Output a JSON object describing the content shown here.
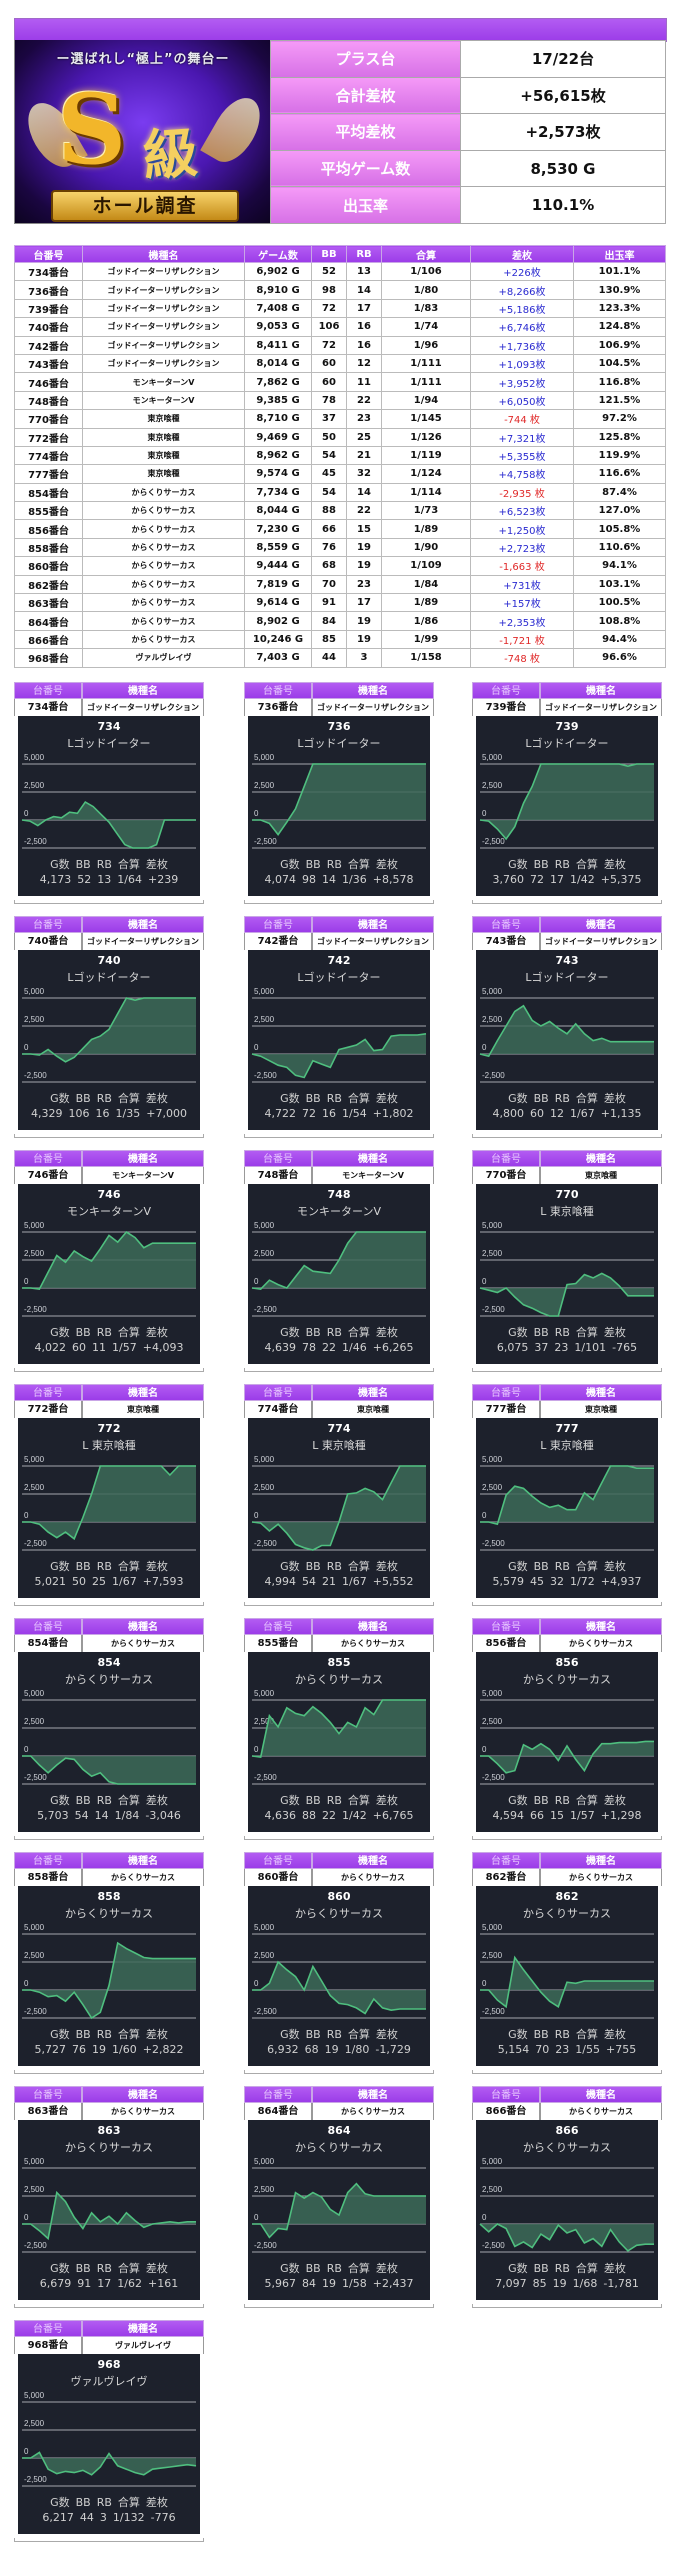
{
  "banner": {
    "tagline": "ー選ばれし“極上”の舞台ー",
    "logo_s": "S",
    "logo_kyu": "級",
    "ribbon": "ホール調査"
  },
  "summary": [
    {
      "label": "プラス台",
      "value": "17/22台"
    },
    {
      "label": "合計差枚",
      "value": "+56,615枚"
    },
    {
      "label": "平均差枚",
      "value": "+2,573枚"
    },
    {
      "label": "平均ゲーム数",
      "value": "8,530 G"
    },
    {
      "label": "出玉率",
      "value": "110.1%"
    }
  ],
  "table": {
    "headers": [
      "台番号",
      "機種名",
      "ゲーム数",
      "BB",
      "RB",
      "合算",
      "差枚",
      "出玉率"
    ],
    "rows": [
      [
        "734番台",
        "ゴッドイーターリザレクション",
        "6,902 G",
        "52",
        "13",
        "1/106",
        "+226枚",
        "101.1%"
      ],
      [
        "736番台",
        "ゴッドイーターリザレクション",
        "8,910 G",
        "98",
        "14",
        "1/80",
        "+8,266枚",
        "130.9%"
      ],
      [
        "739番台",
        "ゴッドイーターリザレクション",
        "7,408 G",
        "72",
        "17",
        "1/83",
        "+5,186枚",
        "123.3%"
      ],
      [
        "740番台",
        "ゴッドイーターリザレクション",
        "9,053 G",
        "106",
        "16",
        "1/74",
        "+6,746枚",
        "124.8%"
      ],
      [
        "742番台",
        "ゴッドイーターリザレクション",
        "8,411 G",
        "72",
        "16",
        "1/96",
        "+1,736枚",
        "106.9%"
      ],
      [
        "743番台",
        "ゴッドイーターリザレクション",
        "8,014 G",
        "60",
        "12",
        "1/111",
        "+1,093枚",
        "104.5%"
      ],
      [
        "746番台",
        "モンキーターンV",
        "7,862 G",
        "60",
        "11",
        "1/111",
        "+3,952枚",
        "116.8%"
      ],
      [
        "748番台",
        "モンキーターンV",
        "9,385 G",
        "78",
        "22",
        "1/94",
        "+6,050枚",
        "121.5%"
      ],
      [
        "770番台",
        "東京喰種",
        "8,710 G",
        "37",
        "23",
        "1/145",
        "-744 枚",
        "97.2%"
      ],
      [
        "772番台",
        "東京喰種",
        "9,469 G",
        "50",
        "25",
        "1/126",
        "+7,321枚",
        "125.8%"
      ],
      [
        "774番台",
        "東京喰種",
        "8,962 G",
        "54",
        "21",
        "1/119",
        "+5,355枚",
        "119.9%"
      ],
      [
        "777番台",
        "東京喰種",
        "9,574 G",
        "45",
        "32",
        "1/124",
        "+4,758枚",
        "116.6%"
      ],
      [
        "854番台",
        "からくりサーカス",
        "7,734 G",
        "54",
        "14",
        "1/114",
        "-2,935 枚",
        "87.4%"
      ],
      [
        "855番台",
        "からくりサーカス",
        "8,044 G",
        "88",
        "22",
        "1/73",
        "+6,523枚",
        "127.0%"
      ],
      [
        "856番台",
        "からくりサーカス",
        "7,230 G",
        "66",
        "15",
        "1/89",
        "+1,250枚",
        "105.8%"
      ],
      [
        "858番台",
        "からくりサーカス",
        "8,559 G",
        "76",
        "19",
        "1/90",
        "+2,723枚",
        "110.6%"
      ],
      [
        "860番台",
        "からくりサーカス",
        "9,444 G",
        "68",
        "19",
        "1/109",
        "-1,663 枚",
        "94.1%"
      ],
      [
        "862番台",
        "からくりサーカス",
        "7,819 G",
        "70",
        "23",
        "1/84",
        "+731枚",
        "103.1%"
      ],
      [
        "863番台",
        "からくりサーカス",
        "9,614 G",
        "91",
        "17",
        "1/89",
        "+157枚",
        "100.5%"
      ],
      [
        "864番台",
        "からくりサーカス",
        "8,902 G",
        "84",
        "19",
        "1/86",
        "+2,353枚",
        "108.8%"
      ],
      [
        "866番台",
        "からくりサーカス",
        "10,246 G",
        "85",
        "19",
        "1/99",
        "-1,721 枚",
        "94.4%"
      ],
      [
        "968番台",
        "ヴァルヴレイヴ",
        "7,403 G",
        "44",
        "3",
        "1/158",
        "-748 枚",
        "96.6%"
      ]
    ]
  },
  "card_labels": {
    "col1": "台番号",
    "col2": "機種名",
    "stat_headers": [
      "G数",
      "BB",
      "RB",
      "合算",
      "差枚"
    ],
    "yticks": [
      "5,000",
      "2,500",
      "0",
      "-2,500"
    ]
  },
  "colors": {
    "purple": "#a447ee",
    "pink": "#e885ef",
    "positive": "#2a2ad0",
    "negative": "#e02828",
    "chart_bg": "#1d212c",
    "chart_line": "#4fbf7f",
    "chart_fill": "#3c6a58"
  },
  "chart_data": [
    {
      "type": "area",
      "unit": "734",
      "machine": "ゴッドイーターリザレクション",
      "title": "734",
      "subtitle": "Lゴッドイーター",
      "ylim": [
        -2500,
        5000
      ],
      "yticks": [
        5000,
        2500,
        0,
        -2500
      ],
      "stats": [
        "4,173",
        "52",
        "13",
        "1/64",
        "+239"
      ],
      "values": [
        0,
        -100,
        -500,
        0,
        300,
        200,
        700,
        600,
        1600,
        1200,
        500,
        -200,
        -1200,
        -2200,
        -2500,
        -2500,
        -2500,
        -2200,
        0,
        0,
        0,
        0,
        0
      ]
    },
    {
      "type": "area",
      "unit": "736",
      "machine": "ゴッドイーターリザレクション",
      "title": "736",
      "subtitle": "Lゴッドイーター",
      "ylim": [
        -2500,
        5000
      ],
      "yticks": [
        5000,
        2500,
        0,
        -2500
      ],
      "stats": [
        "4,074",
        "98",
        "14",
        "1/36",
        "+8,578"
      ],
      "values": [
        0,
        0,
        -300,
        -1300,
        -200,
        1000,
        3000,
        5000,
        5000,
        5000,
        5000,
        5000,
        5000,
        5000,
        5000,
        5000,
        5000,
        5000,
        5000,
        5000,
        5000
      ]
    },
    {
      "type": "area",
      "unit": "739",
      "machine": "ゴッドイーターリザレクション",
      "title": "739",
      "subtitle": "Lゴッドイーター",
      "ylim": [
        -2500,
        5000
      ],
      "yticks": [
        5000,
        2500,
        0,
        -2500
      ],
      "stats": [
        "3,760",
        "72",
        "17",
        "1/42",
        "+5,375"
      ],
      "values": [
        0,
        -100,
        -800,
        -1700,
        -600,
        1500,
        3000,
        5000,
        5000,
        5000,
        5000,
        5000,
        5000,
        5000,
        5000,
        5000,
        5000,
        4800,
        5000,
        5000,
        5000
      ]
    },
    {
      "type": "area",
      "unit": "740",
      "machine": "ゴッドイーターリザレクション",
      "title": "740",
      "subtitle": "Lゴッドイーター",
      "ylim": [
        -2500,
        5000
      ],
      "yticks": [
        5000,
        2500,
        0,
        -2500
      ],
      "stats": [
        "4,329",
        "106",
        "16",
        "1/35",
        "+7,000"
      ],
      "values": [
        0,
        0,
        -100,
        400,
        -200,
        -700,
        -300,
        500,
        1300,
        1600,
        2200,
        3600,
        5000,
        4800,
        5000,
        5000,
        5000,
        5000,
        5000,
        5000,
        5000
      ]
    },
    {
      "type": "area",
      "unit": "742",
      "machine": "ゴッドイーターリザレクション",
      "title": "742",
      "subtitle": "Lゴッドイーター",
      "ylim": [
        -2500,
        5000
      ],
      "yticks": [
        5000,
        2500,
        0,
        -2500
      ],
      "stats": [
        "4,722",
        "72",
        "16",
        "1/54",
        "+1,802"
      ],
      "values": [
        0,
        -200,
        -600,
        -1000,
        -1200,
        -1900,
        -2100,
        -600,
        -900,
        -1200,
        400,
        600,
        800,
        1300,
        300,
        400,
        1600,
        1700,
        1700,
        1700,
        1800
      ]
    },
    {
      "type": "area",
      "unit": "743",
      "machine": "ゴッドイーターリザレクション",
      "title": "743",
      "subtitle": "Lゴッドイーター",
      "ylim": [
        -2500,
        5000
      ],
      "yticks": [
        5000,
        2500,
        0,
        -2500
      ],
      "stats": [
        "4,800",
        "60",
        "12",
        "1/67",
        "+1,135"
      ],
      "values": [
        0,
        -200,
        1200,
        2500,
        3800,
        4300,
        3000,
        2500,
        2900,
        2300,
        1800,
        2700,
        1800,
        1200,
        1400,
        1100,
        1100,
        1100,
        1100,
        1100,
        1100
      ]
    },
    {
      "type": "area",
      "unit": "746",
      "machine": "モンキーターンV",
      "title": "746",
      "subtitle": "モンキーターンV",
      "ylim": [
        -2500,
        5000
      ],
      "yticks": [
        5000,
        2500,
        0,
        -2500
      ],
      "stats": [
        "4,022",
        "60",
        "11",
        "1/57",
        "+4,093"
      ],
      "values": [
        0,
        0,
        -100,
        1400,
        2900,
        2300,
        3300,
        2800,
        2400,
        3500,
        4700,
        4100,
        5000,
        4500,
        3600,
        4000,
        4000,
        4000,
        4000,
        4000,
        4000
      ]
    },
    {
      "type": "area",
      "unit": "748",
      "machine": "モンキーターンV",
      "title": "748",
      "subtitle": "モンキーターンV",
      "ylim": [
        -2500,
        5000
      ],
      "yticks": [
        5000,
        2500,
        0,
        -2500
      ],
      "stats": [
        "4,639",
        "78",
        "22",
        "1/46",
        "+6,265"
      ],
      "values": [
        0,
        -100,
        700,
        300,
        0,
        1000,
        2000,
        1500,
        1400,
        1300,
        2500,
        4000,
        5000,
        5000,
        5000,
        5000,
        5000,
        5000,
        5000,
        5000,
        5000
      ]
    },
    {
      "type": "area",
      "unit": "770",
      "machine": "東京喰種",
      "title": "770",
      "subtitle": "L 東京喰種",
      "ylim": [
        -2500,
        5000
      ],
      "yticks": [
        5000,
        2500,
        0,
        -2500
      ],
      "stats": [
        "6,075",
        "37",
        "23",
        "1/101",
        "-765"
      ],
      "values": [
        0,
        -200,
        -400,
        0,
        -800,
        -1500,
        -1800,
        -2200,
        -2500,
        -2500,
        300,
        400,
        1200,
        900,
        1300,
        900,
        200,
        -700,
        -700,
        -700,
        -700
      ]
    },
    {
      "type": "area",
      "unit": "772",
      "machine": "東京喰種",
      "title": "772",
      "subtitle": "L 東京喰種",
      "ylim": [
        -2500,
        5000
      ],
      "yticks": [
        5000,
        2500,
        0,
        -2500
      ],
      "stats": [
        "5,021",
        "50",
        "25",
        "1/67",
        "+7,593"
      ],
      "values": [
        0,
        0,
        -200,
        -900,
        -1400,
        -900,
        -1500,
        400,
        2500,
        5000,
        5000,
        5000,
        5000,
        5000,
        5000,
        5000,
        5000,
        4200,
        5000,
        5000,
        5000
      ]
    },
    {
      "type": "area",
      "unit": "774",
      "machine": "東京喰種",
      "title": "774",
      "subtitle": "L 東京喰種",
      "ylim": [
        -2500,
        5000
      ],
      "yticks": [
        5000,
        2500,
        0,
        -2500
      ],
      "stats": [
        "4,994",
        "54",
        "21",
        "1/67",
        "+5,552"
      ],
      "values": [
        0,
        -100,
        -800,
        -200,
        -1000,
        -2000,
        -2300,
        -2500,
        -2100,
        -2100,
        0,
        2500,
        2600,
        3000,
        2700,
        2000,
        3500,
        5000,
        5000,
        5000,
        5000
      ]
    },
    {
      "type": "area",
      "unit": "777",
      "machine": "東京喰種",
      "title": "777",
      "subtitle": "L 東京喰種",
      "ylim": [
        -2500,
        5000
      ],
      "yticks": [
        5000,
        2500,
        0,
        -2500
      ],
      "stats": [
        "5,579",
        "45",
        "32",
        "1/72",
        "+4,937"
      ],
      "values": [
        0,
        0,
        -200,
        2400,
        3200,
        3000,
        2300,
        1700,
        1300,
        1500,
        1100,
        1100,
        2600,
        2000,
        3500,
        5000,
        5000,
        5000,
        4800,
        4800,
        4800
      ]
    },
    {
      "type": "area",
      "unit": "854",
      "machine": "からくりサーカス",
      "title": "854",
      "subtitle": "からくりサーカス",
      "ylim": [
        -2500,
        5000
      ],
      "yticks": [
        5000,
        2500,
        0,
        -2500
      ],
      "stats": [
        "5,703",
        "54",
        "14",
        "1/84",
        "-3,046"
      ],
      "values": [
        0,
        0,
        -800,
        -1500,
        -800,
        -200,
        -300,
        -1200,
        -1800,
        -1500,
        -2300,
        -2500,
        -2500,
        -2500,
        -2500,
        -2500,
        -2500,
        -2500,
        -2500,
        -2500,
        -2500
      ]
    },
    {
      "type": "area",
      "unit": "855",
      "machine": "からくりサーカス",
      "title": "855",
      "subtitle": "からくりサーカス",
      "ylim": [
        -2500,
        5000
      ],
      "yticks": [
        5000,
        2500,
        0,
        -2500
      ],
      "stats": [
        "4,636",
        "88",
        "22",
        "1/42",
        "+6,765"
      ],
      "values": [
        0,
        -100,
        3600,
        2600,
        4300,
        3800,
        3600,
        4400,
        3800,
        3000,
        2000,
        3000,
        2600,
        4300,
        3700,
        5000,
        5000,
        5000,
        5000,
        5000,
        5000
      ]
    },
    {
      "type": "area",
      "unit": "856",
      "machine": "からくりサーカス",
      "title": "856",
      "subtitle": "からくりサーカス",
      "ylim": [
        -2500,
        5000
      ],
      "yticks": [
        5000,
        2500,
        0,
        -2500
      ],
      "stats": [
        "4,594",
        "66",
        "15",
        "1/57",
        "+1,298"
      ],
      "values": [
        0,
        0,
        -700,
        -1500,
        -1300,
        1000,
        600,
        1100,
        600,
        -400,
        900,
        -300,
        -1300,
        200,
        1100,
        1100,
        1200,
        1200,
        1200,
        1300,
        1300
      ]
    },
    {
      "type": "area",
      "unit": "858",
      "machine": "からくりサーカス",
      "title": "858",
      "subtitle": "からくりサーカス",
      "ylim": [
        -2500,
        5000
      ],
      "yticks": [
        5000,
        2500,
        0,
        -2500
      ],
      "stats": [
        "5,727",
        "76",
        "19",
        "1/60",
        "+2,822"
      ],
      "values": [
        0,
        0,
        -200,
        -600,
        -500,
        -1000,
        -200,
        -1300,
        -2500,
        -2000,
        400,
        4200,
        3700,
        3300,
        2900,
        2800,
        2800,
        2800,
        2800,
        2800,
        2800
      ]
    },
    {
      "type": "area",
      "unit": "860",
      "machine": "からくりサーカス",
      "title": "860",
      "subtitle": "からくりサーカス",
      "ylim": [
        -2500,
        5000
      ],
      "yticks": [
        5000,
        2500,
        0,
        -2500
      ],
      "stats": [
        "6,932",
        "68",
        "19",
        "1/80",
        "-1,729"
      ],
      "values": [
        0,
        0,
        600,
        2500,
        1800,
        1200,
        0,
        2100,
        800,
        -500,
        -1200,
        -1300,
        -1600,
        -2100,
        -800,
        -1600,
        -1800,
        -1700,
        -1700,
        -1700,
        -1700
      ]
    },
    {
      "type": "area",
      "unit": "862",
      "machine": "からくりサーカス",
      "title": "862",
      "subtitle": "からくりサーカス",
      "ylim": [
        -2500,
        5000
      ],
      "yticks": [
        5000,
        2500,
        0,
        -2500
      ],
      "stats": [
        "5,154",
        "70",
        "23",
        "1/55",
        "+755"
      ],
      "values": [
        0,
        0,
        -900,
        -1500,
        2900,
        1800,
        800,
        -200,
        -1000,
        -1500,
        700,
        600,
        800,
        800,
        800,
        800,
        800,
        800,
        800,
        800,
        800
      ]
    },
    {
      "type": "area",
      "unit": "863",
      "machine": "からくりサーカス",
      "title": "863",
      "subtitle": "からくりサーカス",
      "ylim": [
        -2500,
        5000
      ],
      "yticks": [
        5000,
        2500,
        0,
        -2500
      ],
      "stats": [
        "6,679",
        "91",
        "17",
        "1/62",
        "+161"
      ],
      "values": [
        0,
        0,
        -600,
        -1300,
        2800,
        2000,
        600,
        -400,
        1000,
        200,
        700,
        0,
        1000,
        300,
        -300,
        0,
        100,
        200,
        100,
        200,
        200
      ]
    },
    {
      "type": "area",
      "unit": "864",
      "machine": "からくりサーカス",
      "title": "864",
      "subtitle": "からくりサーカス",
      "ylim": [
        -2500,
        5000
      ],
      "yticks": [
        5000,
        2500,
        0,
        -2500
      ],
      "stats": [
        "5,967",
        "84",
        "19",
        "1/58",
        "+2,437"
      ],
      "values": [
        0,
        0,
        -1200,
        -400,
        -500,
        2800,
        2300,
        2800,
        2400,
        1300,
        800,
        2800,
        3600,
        2700,
        2500,
        2500,
        2500,
        2500,
        2500,
        2500,
        2500
      ]
    },
    {
      "type": "area",
      "unit": "866",
      "machine": "からくりサーカス",
      "title": "866",
      "subtitle": "からくりサーカス",
      "ylim": [
        -2500,
        5000
      ],
      "yticks": [
        5000,
        2500,
        0,
        -2500
      ],
      "stats": [
        "7,097",
        "85",
        "19",
        "1/68",
        "-1,781"
      ],
      "values": [
        0,
        -700,
        0,
        -400,
        -2000,
        -1600,
        -2100,
        -900,
        -1400,
        -100,
        -800,
        -500,
        -1700,
        -1300,
        -2000,
        -500,
        -1600,
        -2400,
        -1900,
        -1800,
        -1800
      ]
    },
    {
      "type": "area",
      "unit": "968",
      "machine": "ヴァルヴレイヴ",
      "title": "968",
      "subtitle": "ヴァルヴレイヴ",
      "ylim": [
        -2500,
        5000
      ],
      "yticks": [
        5000,
        2500,
        0,
        -2500
      ],
      "stats": [
        "6,217",
        "44",
        "3",
        "1/132",
        "-776"
      ],
      "values": [
        0,
        0,
        500,
        -1000,
        -1400,
        -1200,
        -1300,
        -1100,
        -1500,
        -800,
        400,
        -700,
        -1000,
        -1300,
        -1500,
        -1000,
        -900,
        -800,
        -700,
        -600,
        -700
      ]
    }
  ]
}
